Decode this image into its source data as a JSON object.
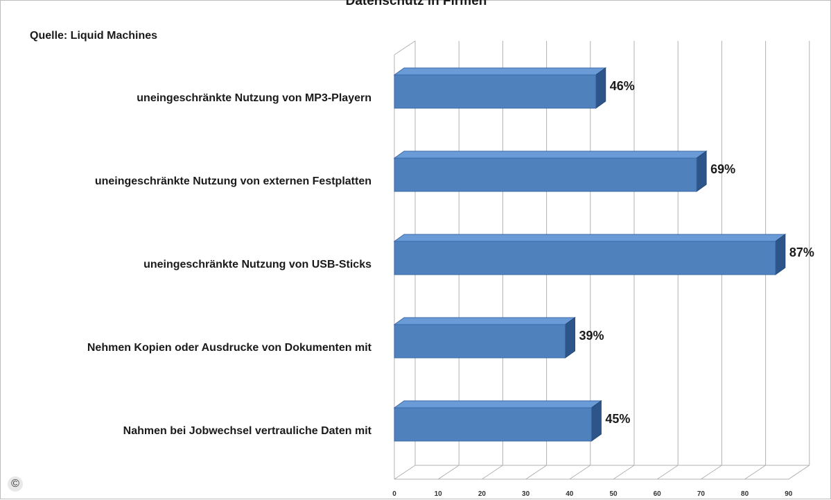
{
  "chart_data": {
    "type": "bar",
    "orientation": "horizontal",
    "title": "Datenschutz in Firmen",
    "subtitle": "Quelle: Liquid Machines",
    "categories": [
      "uneingeschränkte Nutzung von MP3-Playern",
      "uneingeschränkte Nutzung von externen Festplatten",
      "uneingeschränkte Nutzung von USB-Sticks",
      "Nehmen Kopien oder Ausdrucke von Dokumenten mit",
      "Nahmen bei Jobwechsel vertrauliche Daten mit"
    ],
    "values": [
      46,
      69,
      87,
      39,
      45
    ],
    "value_labels": [
      "46%",
      "69%",
      "87%",
      "39%",
      "45%"
    ],
    "xlim": [
      0,
      90
    ],
    "xticks": [
      0,
      10,
      20,
      30,
      40,
      50,
      60,
      70,
      80,
      90
    ],
    "grid": true,
    "bar_color": "#4f81bd",
    "bar_top_color": "#6a9bd6",
    "bar_side_color": "#2d5589",
    "three_d": true
  },
  "copyright_symbol": "©"
}
